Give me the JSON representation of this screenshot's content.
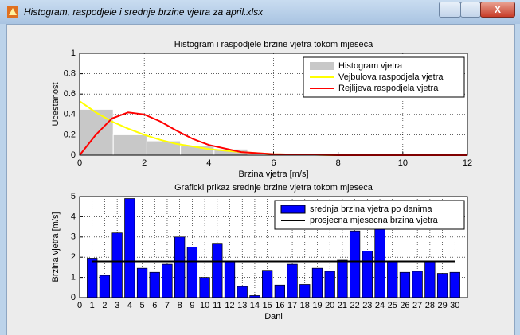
{
  "window": {
    "title": "Histogram, raspodjele i srednje brzine vjetra za april.xlsx"
  },
  "chart_data": [
    {
      "type": "histogram",
      "title": "Histogram i raspodjele brzine vjetra tokom mjeseca",
      "x_label": "Brzina vjetra [m/s]",
      "y_label": "Ucestanost",
      "xlim": [
        0,
        12
      ],
      "xticks": [
        0,
        2,
        4,
        6,
        8,
        10,
        12
      ],
      "ylim": [
        0,
        1
      ],
      "yticks": [
        0,
        0.2,
        0.4,
        0.6,
        0.8,
        1
      ],
      "grid": true,
      "legend": "upper-right",
      "series": [
        {
          "name": "Histogram vjetra",
          "type": "histogram",
          "color": "#c8c8c8",
          "bins": [
            0,
            1.04,
            2.08,
            3.12,
            4.16,
            5.2
          ],
          "values": [
            0.45,
            0.2,
            0.14,
            0.09,
            0.06
          ]
        },
        {
          "name": "Vejbulova raspodjela vjetra",
          "type": "line",
          "color": "#ffff00",
          "x": [
            0,
            0.5,
            1,
            1.5,
            2,
            2.5,
            3,
            4,
            5,
            6,
            8,
            12
          ],
          "values": [
            0.53,
            0.42,
            0.33,
            0.26,
            0.2,
            0.15,
            0.11,
            0.06,
            0.03,
            0.01,
            0,
            0
          ]
        },
        {
          "name": "Rejlijeva raspodjela vjetra",
          "type": "line",
          "color": "#ff0000",
          "x": [
            0,
            0.5,
            1,
            1.5,
            2,
            2.5,
            3,
            3.5,
            4,
            5,
            6,
            8,
            12
          ],
          "values": [
            0,
            0.2,
            0.36,
            0.42,
            0.4,
            0.33,
            0.24,
            0.16,
            0.1,
            0.03,
            0.01,
            0,
            0
          ]
        }
      ]
    },
    {
      "type": "bar",
      "title": "Graficki prikaz srednje brzine vjetra tokom mjeseca",
      "x_label": "Dani",
      "y_label": "Brzina vjetra [m/s]",
      "xlim": [
        0,
        31
      ],
      "xticks": [
        0,
        1,
        2,
        3,
        4,
        5,
        6,
        7,
        8,
        9,
        10,
        11,
        12,
        13,
        14,
        15,
        16,
        17,
        18,
        19,
        20,
        21,
        22,
        23,
        24,
        25,
        26,
        27,
        28,
        29,
        30
      ],
      "ylim": [
        0,
        5
      ],
      "yticks": [
        0,
        1,
        2,
        3,
        4,
        5
      ],
      "grid": true,
      "legend": "upper-right",
      "series": [
        {
          "name": "srednja brzina vjetra po danima",
          "type": "bar",
          "color": "#0000ff",
          "x": [
            1,
            2,
            3,
            4,
            5,
            6,
            7,
            8,
            9,
            10,
            11,
            12,
            13,
            14,
            15,
            16,
            17,
            18,
            19,
            20,
            21,
            22,
            23,
            24,
            25,
            26,
            27,
            28,
            29,
            30
          ],
          "values": [
            1.95,
            1.1,
            3.2,
            4.9,
            1.45,
            1.25,
            1.65,
            3.0,
            2.5,
            1.0,
            2.65,
            1.8,
            0.55,
            0.1,
            1.35,
            0.62,
            1.65,
            0.65,
            1.45,
            1.3,
            1.85,
            3.3,
            2.3,
            3.55,
            1.8,
            1.25,
            1.3,
            1.8,
            1.2,
            1.25
          ]
        },
        {
          "name": "prosjecna mjesecna brzina vjetra",
          "type": "line",
          "color": "#000000",
          "x": [
            1,
            30
          ],
          "values": [
            1.79,
            1.79
          ]
        }
      ]
    }
  ]
}
